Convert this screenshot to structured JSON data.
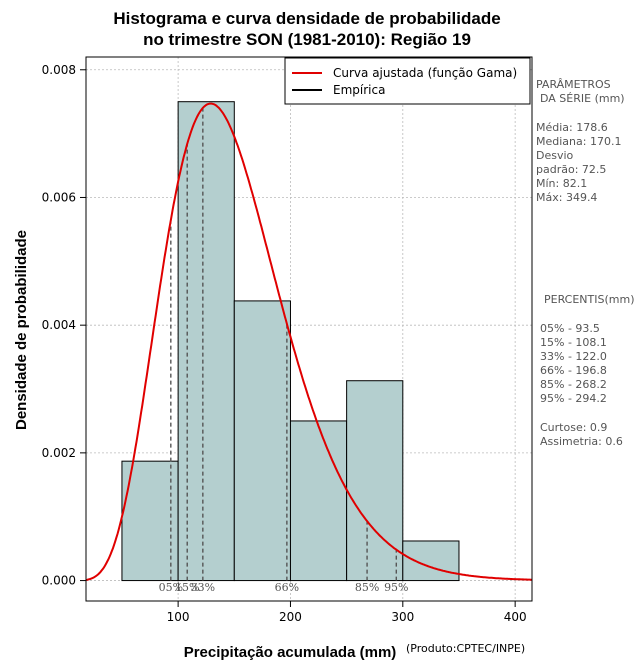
{
  "chart_data": {
    "type": "bar",
    "title_lines": [
      "Histograma e curva densidade de probabilidade",
      "no trimestre SON (1981-2010): Região 19"
    ],
    "xlabel": "Precipitação acumulada (mm)",
    "ylabel": "Densidade de probabilidade",
    "credit": "(Produto:CPTEC/INPE)",
    "xlim": [
      18,
      415
    ],
    "ylim": [
      -0.00032,
      0.0082
    ],
    "x_ticks": [
      100,
      200,
      300,
      400
    ],
    "x_tick_labels": [
      "100",
      "200",
      "300",
      "400"
    ],
    "y_ticks": [
      0,
      0.002,
      0.004,
      0.006,
      0.008
    ],
    "y_tick_labels": [
      "0.000",
      "0.002",
      "0.004",
      "0.006",
      "0.008"
    ],
    "bins": [
      {
        "start": 50,
        "end": 100,
        "density": 0.00187
      },
      {
        "start": 100,
        "end": 150,
        "density": 0.0075
      },
      {
        "start": 150,
        "end": 200,
        "density": 0.00438
      },
      {
        "start": 200,
        "end": 250,
        "density": 0.0025
      },
      {
        "start": 250,
        "end": 300,
        "density": 0.00313
      },
      {
        "start": 300,
        "end": 350,
        "density": 0.00062
      }
    ],
    "gamma_fit": {
      "shape": 7.0,
      "scale": 21.5
    },
    "series": [
      {
        "name": "Curva ajustada (função Gama)",
        "color": "#e00000"
      },
      {
        "name": "Empírica",
        "color": "#000000"
      }
    ],
    "percentile_lines": [
      {
        "label": "05%",
        "value": 93.5
      },
      {
        "label": "15%",
        "value": 108.1
      },
      {
        "label": "33%",
        "value": 122.0
      },
      {
        "label": "66%",
        "value": 196.8
      },
      {
        "label": "85%",
        "value": 268.2
      },
      {
        "label": "95%",
        "value": 294.2
      }
    ],
    "legend_position": "top-right",
    "grid": true
  },
  "colors": {
    "bar_fill": "#b4cfcf",
    "curve": "#e00000",
    "percentile_line": "#555555",
    "grid": "#bbbbbb"
  },
  "side_panel": {
    "params_title_1": "PARÂMETROS",
    "params_title_2": "DA SÉRIE (mm)",
    "media": "Média:  178.6",
    "mediana": "Mediana:  170.1",
    "desvio_1": "Desvio",
    "desvio_2": "padrão:  72.5",
    "min": "Mín:  82.1",
    "max": "Máx:  349.4",
    "percentis_title": "PERCENTIS(mm)",
    "p05": "05% -   93.5",
    "p15": "15% -   108.1",
    "p33": "33% -   122.0",
    "p66": "66% -   196.8",
    "p85": "85% -   268.2",
    "p95": "95% -   294.2",
    "curtose": "Curtose:  0.9",
    "assimetria": "Assimetria:  0.6"
  }
}
